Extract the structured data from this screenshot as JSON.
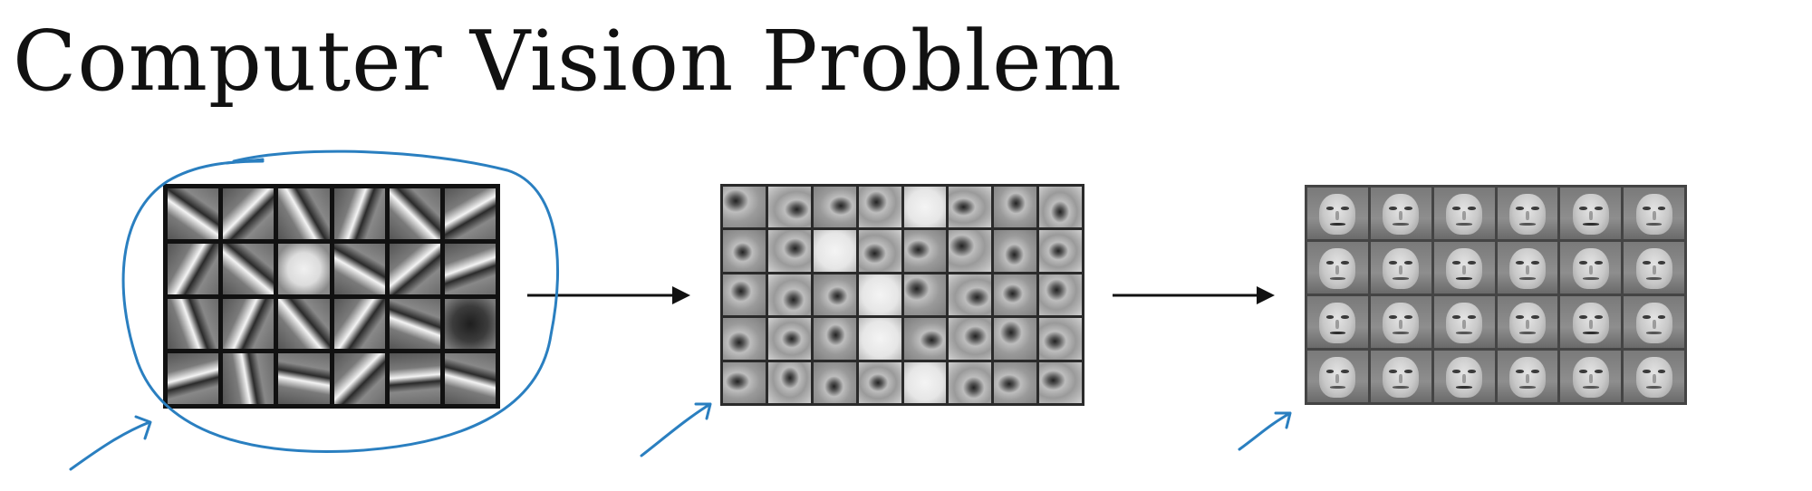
{
  "title": "Computer Vision Problem",
  "colors": {
    "annotation_ink": "#2a7fc0",
    "arrow": "#111111"
  },
  "panels": {
    "edges": {
      "rows": 4,
      "cols": 6,
      "content": "oriented edge filters"
    },
    "parts": {
      "rows": 5,
      "cols": 8,
      "content": "face part features"
    },
    "faces": {
      "rows": 4,
      "cols": 6,
      "content": "face features"
    }
  }
}
